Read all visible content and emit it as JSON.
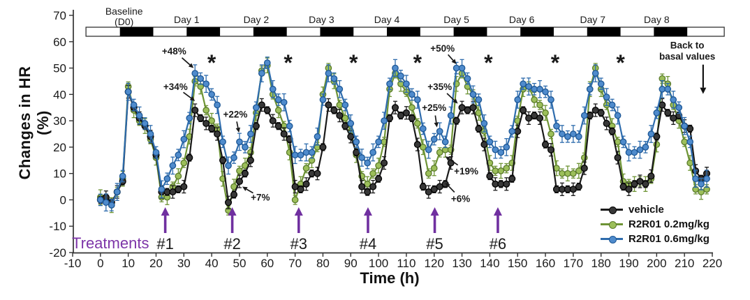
{
  "figure": {
    "type_note": "scientific line chart, telemetry heart-rate study",
    "background": "#ffffff"
  },
  "chart_data": {
    "type": "line",
    "title": "",
    "xlabel": "Time (h)",
    "ylabel": "Changes in HR (%)",
    "xlim": [
      -10,
      220
    ],
    "ylim": [
      -20,
      70
    ],
    "grid": false,
    "legend_position": "lower right inside",
    "sampling_interval_h": 2,
    "x_ticks": [
      -10,
      0,
      10,
      20,
      30,
      40,
      50,
      60,
      70,
      80,
      90,
      100,
      110,
      120,
      130,
      140,
      150,
      160,
      170,
      180,
      190,
      200,
      210,
      220
    ],
    "y_ticks": [
      -20,
      -10,
      0,
      10,
      20,
      30,
      40,
      50,
      60,
      70
    ],
    "x": [
      0,
      2,
      4,
      6,
      8,
      10,
      12,
      14,
      16,
      18,
      20,
      22,
      24,
      26,
      28,
      30,
      32,
      34,
      36,
      38,
      40,
      42,
      44,
      46,
      48,
      50,
      52,
      54,
      56,
      58,
      60,
      62,
      64,
      66,
      68,
      70,
      72,
      74,
      76,
      78,
      80,
      82,
      84,
      86,
      88,
      90,
      92,
      94,
      96,
      98,
      100,
      102,
      104,
      106,
      108,
      110,
      112,
      114,
      116,
      118,
      120,
      122,
      124,
      126,
      128,
      130,
      132,
      134,
      136,
      138,
      140,
      142,
      144,
      146,
      148,
      150,
      152,
      154,
      156,
      158,
      160,
      162,
      164,
      166,
      168,
      170,
      172,
      174,
      176,
      178,
      180,
      182,
      184,
      186,
      188,
      190,
      192,
      194,
      196,
      198,
      200,
      202,
      204,
      206,
      208,
      210,
      212,
      214,
      216,
      218
    ],
    "series": [
      {
        "id": "vehicle",
        "name": "vehicle",
        "color": "#1a1a1a",
        "marker_fill": "#383838",
        "marker_edge": "#000000",
        "values": [
          0,
          1,
          -1,
          3,
          7,
          41,
          35,
          31,
          28,
          24,
          17,
          3,
          3,
          3,
          4,
          5,
          16,
          34,
          31,
          29,
          27,
          25,
          15,
          -1,
          2,
          7,
          10,
          15,
          28,
          36,
          34,
          30,
          28,
          25,
          23,
          5,
          4,
          6,
          10,
          10,
          20,
          36,
          34,
          32,
          28,
          24,
          18,
          5,
          3,
          5,
          8,
          14,
          31,
          35,
          32,
          33,
          31,
          21,
          5,
          3,
          4,
          5,
          6,
          14,
          30,
          35,
          34,
          35,
          27,
          21,
          9,
          6,
          6,
          6,
          8,
          26,
          34,
          31,
          32,
          31,
          21,
          19,
          4,
          4,
          4,
          4,
          5,
          12,
          32,
          34,
          33,
          29,
          26,
          16,
          5,
          4,
          6,
          7,
          6,
          9,
          24,
          36,
          33,
          31,
          32,
          28,
          27,
          11,
          8,
          10
        ]
      },
      {
        "id": "r2r01-02",
        "name": "R2R01 0.2mg/kg",
        "color": "#6e9435",
        "marker_fill": "#9cbf5a",
        "marker_edge": "#5a7a2b",
        "values": [
          1,
          0,
          -2,
          3,
          8,
          43,
          34,
          30,
          28,
          23,
          16,
          1,
          1,
          5,
          9,
          14,
          24,
          45,
          43,
          34,
          30,
          27,
          8,
          -4,
          5,
          11,
          13,
          18,
          33,
          49,
          51,
          40,
          34,
          28,
          18,
          0,
          6,
          12,
          15,
          20,
          40,
          50,
          45,
          36,
          31,
          26,
          17,
          9,
          6,
          10,
          13,
          22,
          42,
          48,
          44,
          41,
          35,
          29,
          20,
          10,
          12,
          18,
          19,
          19,
          44,
          48,
          43,
          40,
          33,
          26,
          14,
          11,
          11,
          12,
          14,
          30,
          42,
          43,
          38,
          36,
          33,
          25,
          12,
          10,
          10,
          10,
          11,
          16,
          42,
          50,
          42,
          36,
          28,
          22,
          7,
          6,
          6,
          7,
          6,
          8,
          21,
          46,
          44,
          36,
          30,
          22,
          14,
          4,
          3,
          4
        ]
      },
      {
        "id": "r2r01-06",
        "name": "R2R01 0.6mg/kg",
        "color": "#2e6cad",
        "marker_fill": "#4f8bcc",
        "marker_edge": "#1d5795",
        "values": [
          0,
          -1,
          -2,
          3,
          9,
          41,
          36,
          32,
          29,
          25,
          18,
          4,
          8,
          13,
          17,
          23,
          31,
          48,
          46,
          44,
          40,
          36,
          22,
          13,
          16,
          22,
          20,
          25,
          35,
          48,
          52,
          42,
          38,
          37,
          28,
          17,
          17,
          18,
          18,
          24,
          38,
          48,
          46,
          42,
          36,
          29,
          22,
          16,
          14,
          18,
          22,
          30,
          44,
          50,
          47,
          44,
          40,
          38,
          27,
          19,
          23,
          26,
          22,
          32,
          50,
          50,
          46,
          40,
          38,
          29,
          22,
          19,
          18,
          20,
          26,
          38,
          44,
          43,
          42,
          42,
          41,
          38,
          28,
          25,
          24,
          25,
          24,
          32,
          42,
          48,
          44,
          39,
          36,
          32,
          22,
          18,
          18,
          19,
          20,
          25,
          33,
          42,
          42,
          38,
          35,
          28,
          22,
          8,
          6,
          8
        ]
      }
    ],
    "error_bars": {
      "shown": true,
      "style": "SEM, symmetric with caps",
      "approx_range_pct": [
        2,
        7
      ]
    },
    "light_dark_bar": {
      "start": -5.2,
      "end": 224.3,
      "dark_phases": [
        [
          7,
          19
        ],
        [
          31,
          43
        ],
        [
          55,
          67
        ],
        [
          79,
          91
        ],
        [
          103,
          115
        ],
        [
          127,
          139
        ],
        [
          151,
          163
        ],
        [
          175,
          187
        ],
        [
          199,
          211
        ]
      ]
    },
    "day_labels": [
      {
        "lines": [
          "Baseline",
          "(D0)"
        ],
        "t": 8.5
      },
      {
        "lines": [
          "Day 1"
        ],
        "t": 31
      },
      {
        "lines": [
          "Day 2"
        ],
        "t": 56
      },
      {
        "lines": [
          "Day 3"
        ],
        "t": 79.5
      },
      {
        "lines": [
          "Day 4"
        ],
        "t": 103
      },
      {
        "lines": [
          "Day 5"
        ],
        "t": 128
      },
      {
        "lines": [
          "Day 6"
        ],
        "t": 151.5
      },
      {
        "lines": [
          "Day 7"
        ],
        "t": 177
      },
      {
        "lines": [
          "Day 8"
        ],
        "t": 200
      }
    ],
    "treatments": {
      "label": "Treatments",
      "color": "#7d35a8",
      "arrow_color": "#7030a0",
      "arrow_times": [
        23.3,
        47.4,
        71.3,
        96.2,
        120.2,
        142.9
      ],
      "numbers": [
        "#1",
        "#2",
        "#3",
        "#4",
        "#5",
        "#6"
      ]
    },
    "significance_marker": "*",
    "significance_asterisks_t": [
      40,
      67.5,
      91,
      114,
      139.5,
      163.5,
      187
    ],
    "annotations": [
      {
        "text": "+48%",
        "color": "#5b8ed2",
        "label_t": 26.5,
        "label_hr": 56.5,
        "tip_t": 33.5,
        "tip_hr": 50
      },
      {
        "text": "+34%",
        "color": "#1a1a1a",
        "label_t": 27,
        "label_hr": 43,
        "tip_t": 34,
        "tip_hr": 37.5
      },
      {
        "text": "+22%",
        "color": "#5b8ed2",
        "label_t": 48.5,
        "label_hr": 32.5,
        "tip_t": 49.8,
        "tip_hr": 25.5
      },
      {
        "text": "+7%",
        "color": "#1a1a1a",
        "label_t": 57.5,
        "label_hr": 1,
        "tip_t": 51,
        "tip_hr": 5
      },
      {
        "text": "+50%",
        "color": "#5b8ed2",
        "label_t": 123,
        "label_hr": 57.5,
        "tip_t": 128,
        "tip_hr": 51.5
      },
      {
        "text": "+35%",
        "color": "#1a1a1a",
        "label_t": 122,
        "label_hr": 43,
        "tip_t": 128.5,
        "tip_hr": 36.5
      },
      {
        "text": "+25%",
        "color": "#5b8ed2",
        "label_t": 120,
        "label_hr": 35,
        "tip_t": 121,
        "tip_hr": 27.5
      },
      {
        "text": "+19%",
        "color": "#90b54a",
        "label_t": 131.5,
        "label_hr": 11,
        "tip_t": 124,
        "tip_hr": 16.5
      },
      {
        "text": "+6%",
        "color": "#1a1a1a",
        "label_t": 129.5,
        "label_hr": 0.5,
        "tip_t": 124,
        "tip_hr": 6.5
      }
    ],
    "back_to_basal": {
      "lines": [
        "Back to",
        "basal values"
      ],
      "t": 211,
      "hr": 57.4,
      "arrow_t": 216.7,
      "arrow_hr_from": 51.3,
      "arrow_hr_to": 40.2
    }
  }
}
